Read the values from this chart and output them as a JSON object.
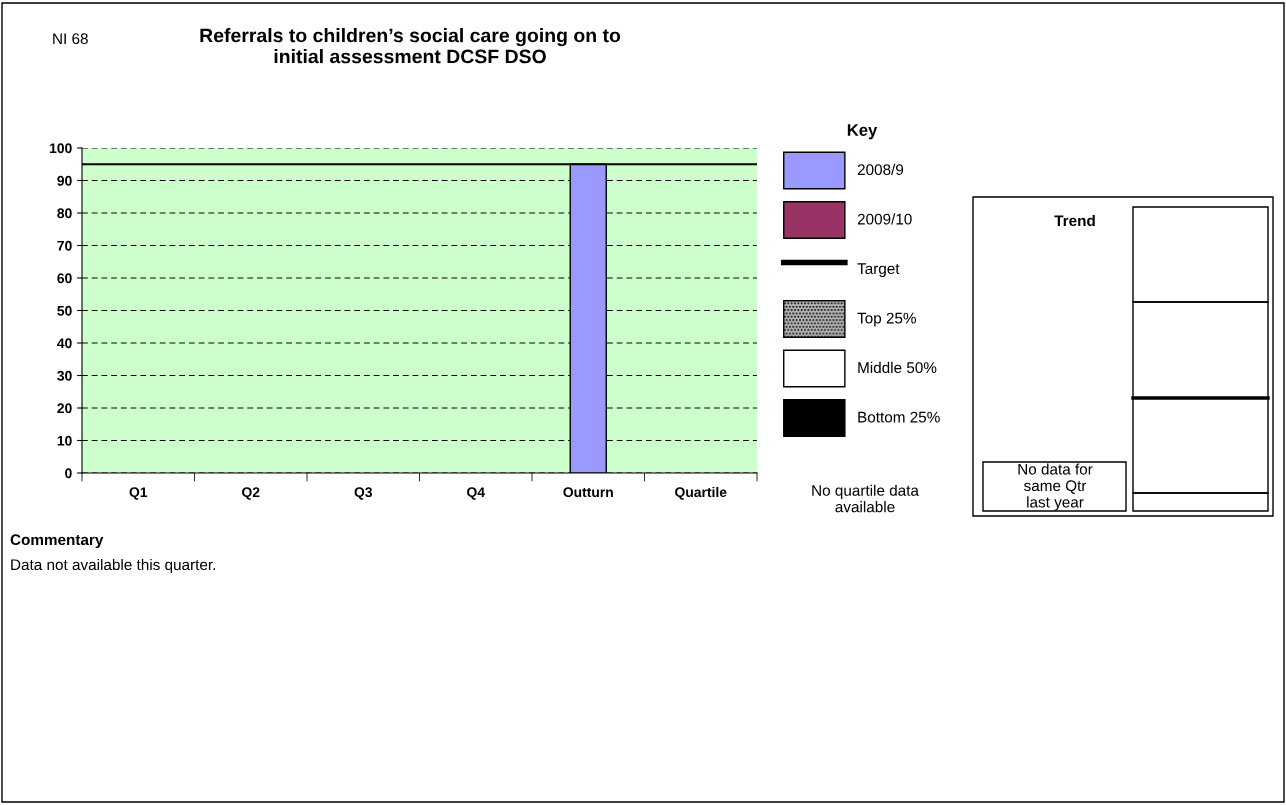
{
  "chart_data": {
    "type": "bar",
    "title": "Referrals to children’s social care going on to\ninitial assessment DCSF DSO",
    "categories": [
      "Q1",
      "Q2",
      "Q3",
      "Q4",
      "Outturn",
      "Quartile"
    ],
    "series": [
      {
        "name": "2008/9",
        "color": "#9999ff",
        "values": [
          null,
          null,
          null,
          null,
          95,
          null
        ]
      },
      {
        "name": "2009/10",
        "color": "#993366",
        "values": [
          null,
          null,
          null,
          null,
          null,
          null
        ]
      }
    ],
    "ylim": [
      0,
      100
    ],
    "yticks": [
      0,
      10,
      20,
      30,
      40,
      50,
      60,
      70,
      80,
      90,
      100
    ],
    "grid": "y",
    "legend": "right",
    "legend_title": "Key",
    "ref_lines": [
      {
        "axis": "y",
        "value": 95,
        "label": "Target",
        "color": "#000000"
      }
    ],
    "annotations": [
      "NI 68",
      "Top 25%",
      "Middle 50%",
      "Bottom 25%",
      "No quartile data\navailable",
      "Trend",
      "No data for\nsame Qtr\nlast year",
      "Commentary",
      "Data not available this quarter."
    ]
  }
}
